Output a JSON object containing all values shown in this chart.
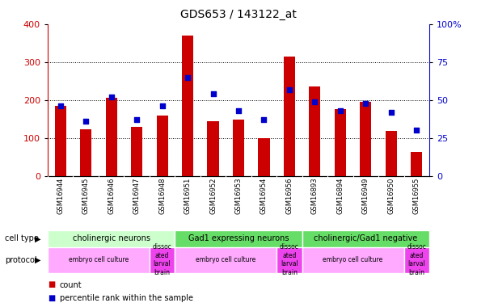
{
  "title": "GDS653 / 143122_at",
  "samples": [
    "GSM16944",
    "GSM16945",
    "GSM16946",
    "GSM16947",
    "GSM16948",
    "GSM16951",
    "GSM16952",
    "GSM16953",
    "GSM16954",
    "GSM16956",
    "GSM16893",
    "GSM16894",
    "GSM16949",
    "GSM16950",
    "GSM16955"
  ],
  "counts": [
    185,
    122,
    205,
    130,
    158,
    370,
    145,
    148,
    100,
    315,
    235,
    175,
    195,
    118,
    62
  ],
  "percentiles": [
    46,
    36,
    52,
    37,
    46,
    65,
    54,
    43,
    37,
    57,
    49,
    43,
    48,
    42,
    30
  ],
  "ylim_left": [
    0,
    400
  ],
  "ylim_right": [
    0,
    100
  ],
  "yticks_left": [
    0,
    100,
    200,
    300,
    400
  ],
  "yticks_right": [
    0,
    25,
    50,
    75,
    100
  ],
  "yticklabels_right": [
    "0",
    "25",
    "50",
    "75",
    "100%"
  ],
  "bar_color": "#cc0000",
  "dot_color": "#0000cc",
  "cell_type_groups": [
    {
      "label": "cholinergic neurons",
      "start": 0,
      "end": 5,
      "color": "#ccffcc"
    },
    {
      "label": "Gad1 expressing neurons",
      "start": 5,
      "end": 10,
      "color": "#66dd66"
    },
    {
      "label": "cholinergic/Gad1 negative",
      "start": 10,
      "end": 15,
      "color": "#66dd66"
    }
  ],
  "protocol_groups": [
    {
      "label": "embryo cell culture",
      "start": 0,
      "end": 4,
      "color": "#ffaaff"
    },
    {
      "label": "dissoc\nated\nlarval\nbrain",
      "start": 4,
      "end": 5,
      "color": "#ee44ee"
    },
    {
      "label": "embryo cell culture",
      "start": 5,
      "end": 9,
      "color": "#ffaaff"
    },
    {
      "label": "dissoc\nated\nlarval\nbrain",
      "start": 9,
      "end": 10,
      "color": "#ee44ee"
    },
    {
      "label": "embryo cell culture",
      "start": 10,
      "end": 14,
      "color": "#ffaaff"
    },
    {
      "label": "dissoc\nated\nlarval\nbrain",
      "start": 14,
      "end": 15,
      "color": "#ee44ee"
    }
  ],
  "grid_lines": [
    100,
    200,
    300
  ],
  "fig_width": 5.9,
  "fig_height": 3.75,
  "dpi": 100
}
